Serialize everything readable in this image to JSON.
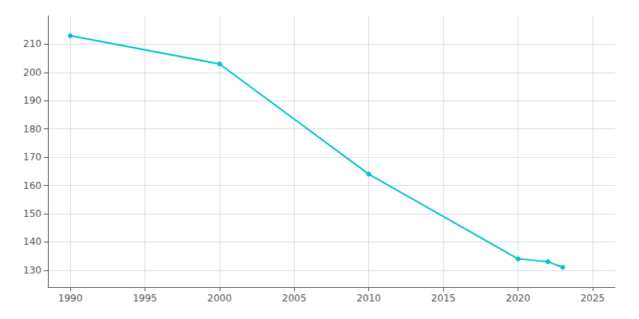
{
  "chart_data": {
    "type": "line",
    "x": [
      1990,
      2000,
      2010,
      2020,
      2022,
      2023
    ],
    "values": [
      213,
      203,
      164,
      134,
      133,
      131
    ],
    "color": "#00C5C5",
    "marker": "circle",
    "xlim": [
      1988.5,
      2026.5
    ],
    "xticks": [
      1990,
      1995,
      2000,
      2005,
      2010,
      2015,
      2020,
      2025
    ],
    "ylim": [
      124,
      220
    ],
    "yticks": [
      130,
      140,
      150,
      160,
      170,
      180,
      190,
      200,
      210
    ],
    "grid": true
  }
}
